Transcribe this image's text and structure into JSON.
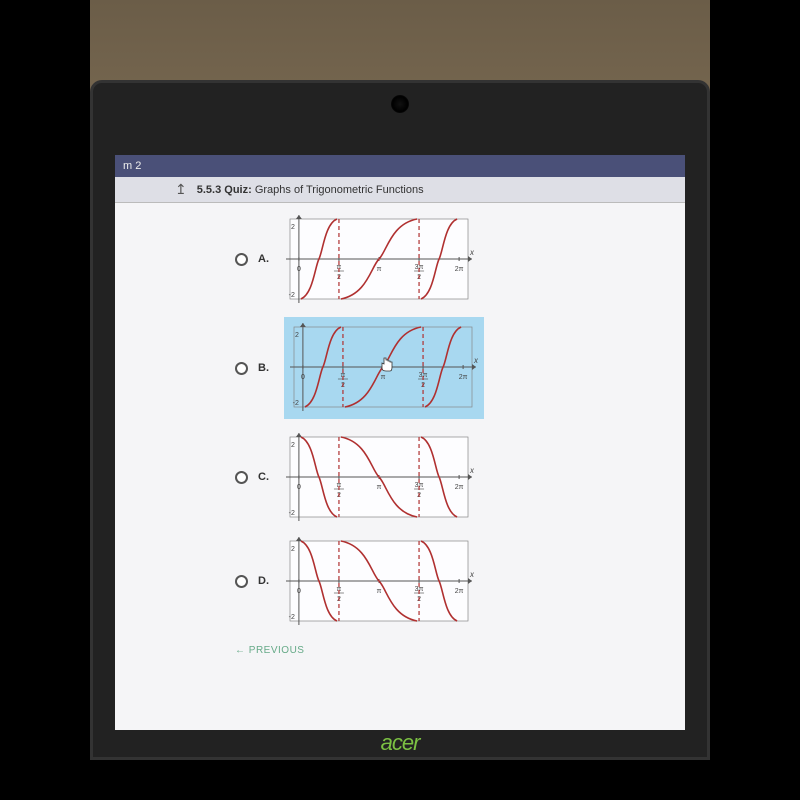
{
  "topbar": {
    "text": "m 2"
  },
  "header": {
    "section": "5.5.3",
    "label": "Quiz:",
    "title": "Graphs of Trigonometric Functions"
  },
  "options": [
    {
      "id": "A",
      "label": "A.",
      "highlighted": false,
      "type": "tan_increasing",
      "asymptotes": [
        0.25,
        0.75
      ],
      "curves": [
        [
          0.0,
          0.25
        ],
        [
          0.25,
          0.75
        ],
        [
          0.75,
          1.0
        ]
      ]
    },
    {
      "id": "B",
      "label": "B.",
      "highlighted": true,
      "type": "tan_increasing",
      "asymptotes": [
        0.25,
        0.75
      ],
      "curves": [
        [
          0.0,
          0.25
        ],
        [
          0.25,
          0.75
        ],
        [
          0.75,
          1.0
        ]
      ]
    },
    {
      "id": "C",
      "label": "C.",
      "highlighted": false,
      "type": "tan_decreasing",
      "asymptotes": [
        0.25,
        0.75
      ],
      "curves": [
        [
          0.0,
          0.25
        ],
        [
          0.25,
          0.75
        ],
        [
          0.75,
          1.0
        ]
      ]
    },
    {
      "id": "D",
      "label": "D.",
      "highlighted": false,
      "type": "tan_decreasing",
      "asymptotes": [
        0.25,
        0.75
      ],
      "curves": [
        [
          0.0,
          0.25
        ],
        [
          0.25,
          0.75
        ],
        [
          0.75,
          1.0
        ]
      ]
    }
  ],
  "xticks": [
    "0",
    "π/2",
    "π",
    "3π/2",
    "2π"
  ],
  "axis_label_x": "x",
  "yticks": [
    "2",
    "-2"
  ],
  "colors": {
    "curve": "#b03030",
    "asymptote": "#b03030",
    "grid": "#888",
    "axis": "#555",
    "highlight_bg": "#a8d8f0",
    "graph_bg": "#fdfdff"
  },
  "graph": {
    "w": 190,
    "h": 92,
    "margin": 6
  },
  "nav": {
    "previous": "← PREVIOUS"
  },
  "brand": "acer"
}
